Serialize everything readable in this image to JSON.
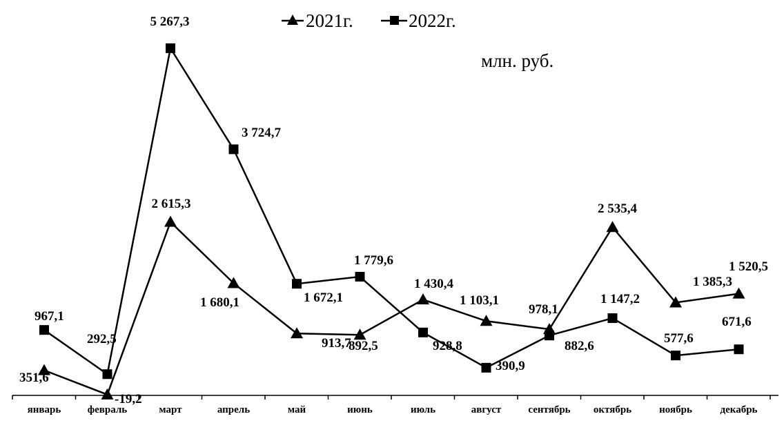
{
  "chart_data": {
    "type": "line",
    "unit_label": "млн. руб.",
    "categories": [
      "январь",
      "февраль",
      "март",
      "апрель",
      "май",
      "июнь",
      "июль",
      "август",
      "сентябрь",
      "октябрь",
      "ноябрь",
      "декабрь"
    ],
    "series": [
      {
        "name": "2021г.",
        "marker": "triangle",
        "values": [
          351.6,
          -19.2,
          2615.3,
          1680.1,
          913.7,
          892.5,
          1430.4,
          1103.1,
          978.1,
          2535.4,
          1385.3,
          1520.5
        ],
        "labels": [
          "351,6",
          "-19,2",
          "2 615,3",
          "1 680,1",
          "913,7",
          "892,5",
          "1 430,4",
          "1 103,1",
          "978,1",
          "2 535,4",
          "1 385,3",
          "1 520,5"
        ]
      },
      {
        "name": "2022г.",
        "marker": "square",
        "values": [
          967.1,
          292.5,
          5267.3,
          3724.7,
          1672.1,
          1779.6,
          928.8,
          390.9,
          882.6,
          1147.2,
          577.6,
          671.6
        ],
        "labels": [
          "967,1",
          "292,5",
          "5 267,3",
          "3 724,7",
          "1 672,1",
          "1 779,6",
          "928,8",
          "390,9",
          "882,6",
          "1 147,2",
          "577,6",
          "671,6"
        ]
      }
    ],
    "legend_position": "top-center",
    "grid": false,
    "color": "#000000"
  }
}
